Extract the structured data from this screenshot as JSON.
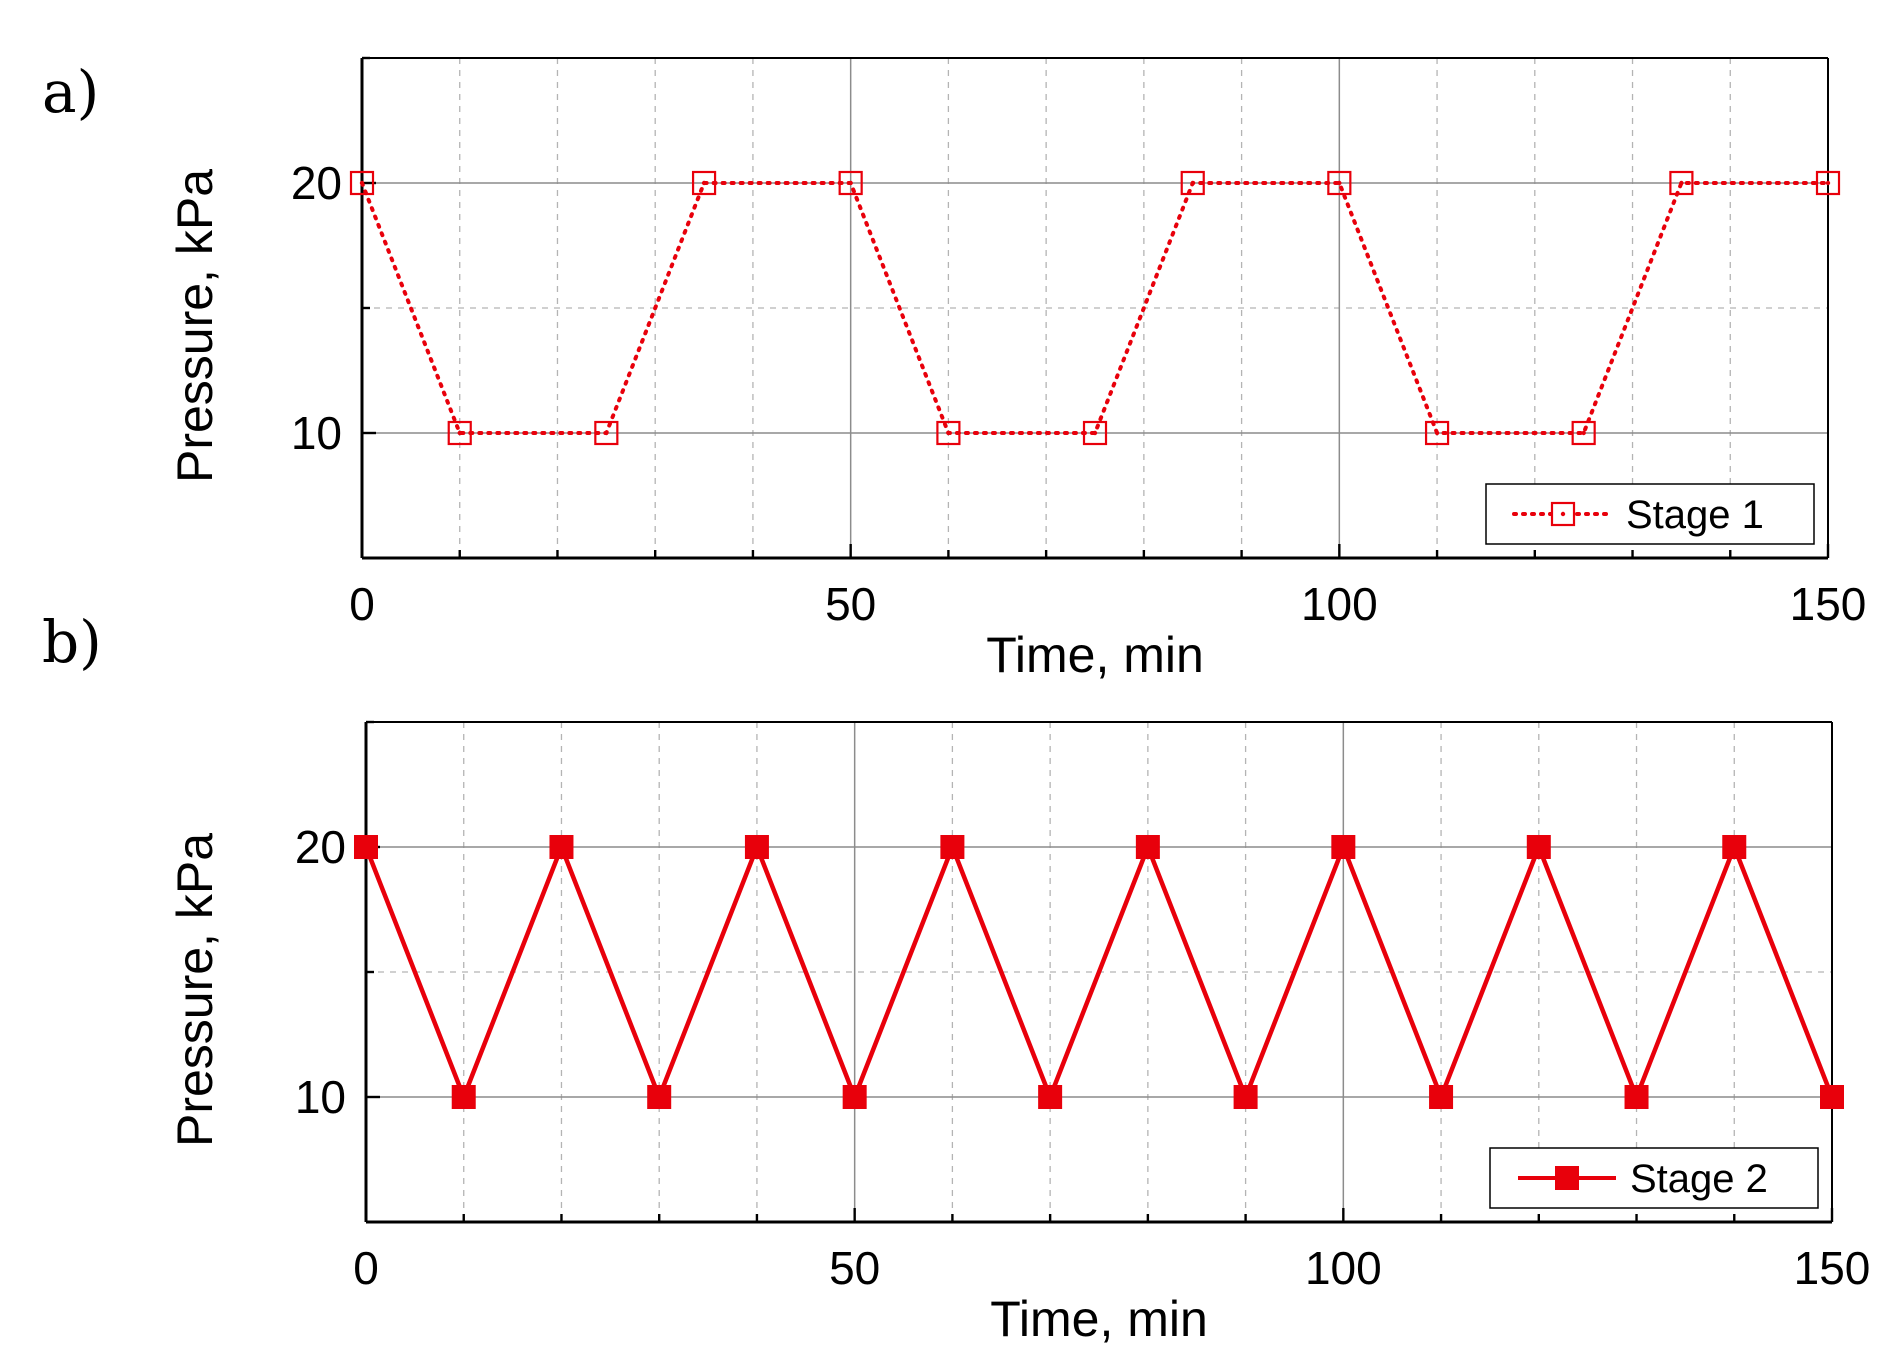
{
  "colors": {
    "series": "#e8000b",
    "grid_major": "#8c8c8c",
    "grid_minor": "#b4b4b4",
    "axis": "#000000"
  },
  "chart_data": [
    {
      "panel_label": "a)",
      "type": "line",
      "xlabel": "Time, min",
      "ylabel": "Pressure, kPa",
      "xlim": [
        0,
        150
      ],
      "ylim": [
        5,
        25
      ],
      "xticks": [
        0,
        50,
        100,
        150
      ],
      "yticks": [
        10,
        20
      ],
      "xtick_labels": [
        "0",
        "50",
        "100",
        "150"
      ],
      "ytick_labels": [
        "10",
        "20"
      ],
      "grid": true,
      "legend_position": "bottom-right",
      "series": [
        {
          "name": "Stage 1",
          "line_style": "dotted",
          "marker": "open-square",
          "x": [
            0,
            10,
            25,
            35,
            50,
            60,
            75,
            85,
            100,
            110,
            125,
            135,
            150
          ],
          "y": [
            20,
            10,
            10,
            20,
            20,
            10,
            10,
            20,
            20,
            10,
            10,
            20,
            20
          ]
        }
      ]
    },
    {
      "panel_label": "b)",
      "type": "line",
      "xlabel": "Time, min",
      "ylabel": "Pressure, kPa",
      "xlim": [
        0,
        150
      ],
      "ylim": [
        5,
        25
      ],
      "xticks": [
        0,
        50,
        100,
        150
      ],
      "yticks": [
        10,
        20
      ],
      "xtick_labels": [
        "0",
        "50",
        "100",
        "150"
      ],
      "ytick_labels": [
        "10",
        "20"
      ],
      "grid": true,
      "legend_position": "bottom-right",
      "series": [
        {
          "name": "Stage 2",
          "line_style": "solid",
          "marker": "filled-square",
          "x": [
            0,
            10,
            20,
            30,
            40,
            50,
            60,
            70,
            80,
            90,
            100,
            110,
            120,
            130,
            140,
            150
          ],
          "y": [
            20,
            10,
            20,
            10,
            20,
            10,
            20,
            10,
            20,
            10,
            20,
            10,
            20,
            10,
            20,
            10
          ]
        }
      ]
    }
  ]
}
